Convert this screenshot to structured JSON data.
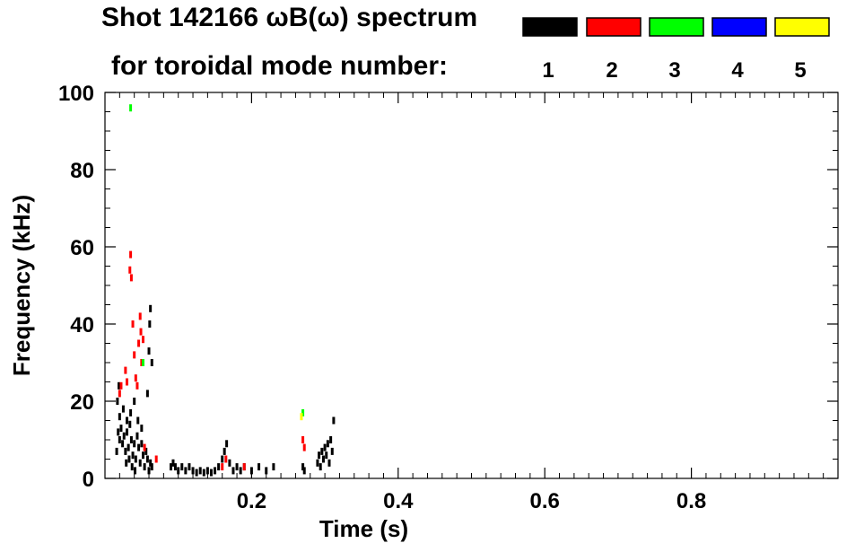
{
  "title": {
    "line1": "Shot 142166 ωB(ω) spectrum",
    "line2": "for toroidal mode number:"
  },
  "legend": {
    "items": [
      {
        "label": "1",
        "color": "#000000"
      },
      {
        "label": "2",
        "color": "#ff0000"
      },
      {
        "label": "3",
        "color": "#00ff00"
      },
      {
        "label": "4",
        "color": "#0000ff"
      },
      {
        "label": "5",
        "color": "#ffff00"
      }
    ]
  },
  "chart_data": {
    "type": "heatmap",
    "title": "Shot 142166 ωB(ω) spectrum",
    "xlabel": "Time (s)",
    "ylabel": "Frequency (kHz)",
    "xlim": [
      0.0,
      1.0
    ],
    "ylim": [
      0,
      100
    ],
    "x_ticks": [
      0.2,
      0.4,
      0.6,
      0.8
    ],
    "x_tick_labels": [
      "0.2",
      "0.4",
      "0.6",
      "0.8"
    ],
    "y_ticks": [
      0,
      20,
      40,
      60,
      80,
      100
    ],
    "y_tick_labels": [
      "0",
      "20",
      "40",
      "60",
      "80",
      "100"
    ],
    "grid": false,
    "series": [
      {
        "name": "1",
        "color": "#000000",
        "points": [
          [
            0.018,
            12
          ],
          [
            0.02,
            10
          ],
          [
            0.022,
            13
          ],
          [
            0.024,
            9
          ],
          [
            0.026,
            11
          ],
          [
            0.028,
            7
          ],
          [
            0.03,
            12
          ],
          [
            0.032,
            8
          ],
          [
            0.034,
            14
          ],
          [
            0.036,
            10
          ],
          [
            0.038,
            6
          ],
          [
            0.04,
            9
          ],
          [
            0.042,
            5
          ],
          [
            0.044,
            11
          ],
          [
            0.046,
            8
          ],
          [
            0.048,
            4
          ],
          [
            0.05,
            9
          ],
          [
            0.052,
            6
          ],
          [
            0.054,
            3
          ],
          [
            0.056,
            7
          ],
          [
            0.058,
            5
          ],
          [
            0.06,
            2
          ],
          [
            0.062,
            4
          ],
          [
            0.064,
            3
          ],
          [
            0.02,
            16
          ],
          [
            0.025,
            18
          ],
          [
            0.03,
            15
          ],
          [
            0.035,
            17
          ],
          [
            0.04,
            20
          ],
          [
            0.045,
            15
          ],
          [
            0.05,
            13
          ],
          [
            0.033,
            5
          ],
          [
            0.037,
            3
          ],
          [
            0.041,
            2
          ],
          [
            0.029,
            4
          ],
          [
            0.016,
            7
          ],
          [
            0.017,
            20
          ],
          [
            0.019,
            24
          ],
          [
            0.058,
            22
          ],
          [
            0.06,
            33
          ],
          [
            0.061,
            40
          ],
          [
            0.062,
            44
          ],
          [
            0.064,
            30
          ],
          [
            0.09,
            3
          ],
          [
            0.093,
            4
          ],
          [
            0.096,
            3
          ],
          [
            0.1,
            2
          ],
          [
            0.105,
            3
          ],
          [
            0.11,
            2
          ],
          [
            0.115,
            3
          ],
          [
            0.12,
            2
          ],
          [
            0.125,
            1.5
          ],
          [
            0.13,
            2
          ],
          [
            0.135,
            1.5
          ],
          [
            0.14,
            2
          ],
          [
            0.145,
            1.5
          ],
          [
            0.15,
            2
          ],
          [
            0.155,
            3
          ],
          [
            0.16,
            5
          ],
          [
            0.163,
            7
          ],
          [
            0.166,
            9
          ],
          [
            0.17,
            4
          ],
          [
            0.175,
            2
          ],
          [
            0.18,
            3
          ],
          [
            0.185,
            2
          ],
          [
            0.19,
            3
          ],
          [
            0.2,
            2
          ],
          [
            0.21,
            3
          ],
          [
            0.22,
            2
          ],
          [
            0.23,
            3
          ],
          [
            0.27,
            3
          ],
          [
            0.272,
            2
          ],
          [
            0.29,
            4
          ],
          [
            0.292,
            6
          ],
          [
            0.294,
            3
          ],
          [
            0.296,
            7
          ],
          [
            0.298,
            5
          ],
          [
            0.3,
            8
          ],
          [
            0.302,
            6
          ],
          [
            0.304,
            9
          ],
          [
            0.306,
            4
          ],
          [
            0.308,
            10
          ],
          [
            0.31,
            7
          ],
          [
            0.312,
            15
          ]
        ]
      },
      {
        "name": "2",
        "color": "#ff0000",
        "points": [
          [
            0.02,
            22
          ],
          [
            0.022,
            24
          ],
          [
            0.028,
            28
          ],
          [
            0.03,
            25
          ],
          [
            0.034,
            54
          ],
          [
            0.035,
            58
          ],
          [
            0.036,
            52
          ],
          [
            0.038,
            40
          ],
          [
            0.04,
            32
          ],
          [
            0.042,
            26
          ],
          [
            0.044,
            24
          ],
          [
            0.046,
            35
          ],
          [
            0.048,
            42
          ],
          [
            0.049,
            38
          ],
          [
            0.05,
            30
          ],
          [
            0.052,
            36
          ],
          [
            0.054,
            8
          ],
          [
            0.07,
            5
          ],
          [
            0.16,
            3
          ],
          [
            0.165,
            5
          ],
          [
            0.19,
            3
          ],
          [
            0.27,
            10
          ],
          [
            0.272,
            8
          ]
        ]
      },
      {
        "name": "3",
        "color": "#00ff00",
        "points": [
          [
            0.035,
            96
          ],
          [
            0.052,
            30
          ],
          [
            0.27,
            17
          ]
        ]
      },
      {
        "name": "4",
        "color": "#0000ff",
        "points": []
      },
      {
        "name": "5",
        "color": "#ffff00",
        "points": [
          [
            0.268,
            16
          ]
        ]
      }
    ]
  }
}
